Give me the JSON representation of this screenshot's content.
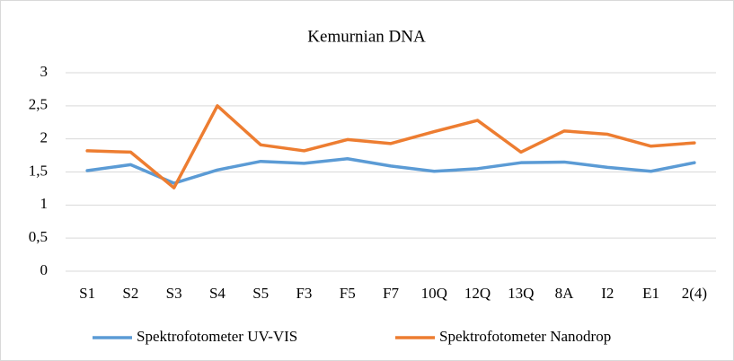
{
  "chart_data": {
    "type": "line",
    "title": "Kemurnian DNA",
    "categories": [
      "S1",
      "S2",
      "S3",
      "S4",
      "S5",
      "F3",
      "F5",
      "F7",
      "10Q",
      "12Q",
      "13Q",
      "8A",
      "I2",
      "E1",
      "2(4)"
    ],
    "series": [
      {
        "name": "Spektrofotometer UV-VIS",
        "color": "#5b9bd5",
        "values": [
          1.52,
          1.61,
          1.33,
          1.53,
          1.66,
          1.63,
          1.7,
          1.59,
          1.51,
          1.55,
          1.64,
          1.65,
          1.57,
          1.51,
          1.64
        ]
      },
      {
        "name": "Spektrofotometer Nanodrop",
        "color": "#ed7d31",
        "values": [
          1.82,
          1.8,
          1.26,
          2.5,
          1.91,
          1.82,
          1.99,
          1.93,
          2.11,
          2.28,
          1.8,
          2.12,
          2.07,
          1.89,
          1.94
        ]
      }
    ],
    "ylim": [
      0,
      3
    ],
    "yticks": [
      0,
      {
        "value": 0.5,
        "label": "0,5"
      },
      1,
      {
        "value": 1.5,
        "label": "1,5"
      },
      2,
      {
        "value": 2.5,
        "label": "2,5"
      },
      3
    ],
    "grid": true,
    "legend": "bottom"
  }
}
